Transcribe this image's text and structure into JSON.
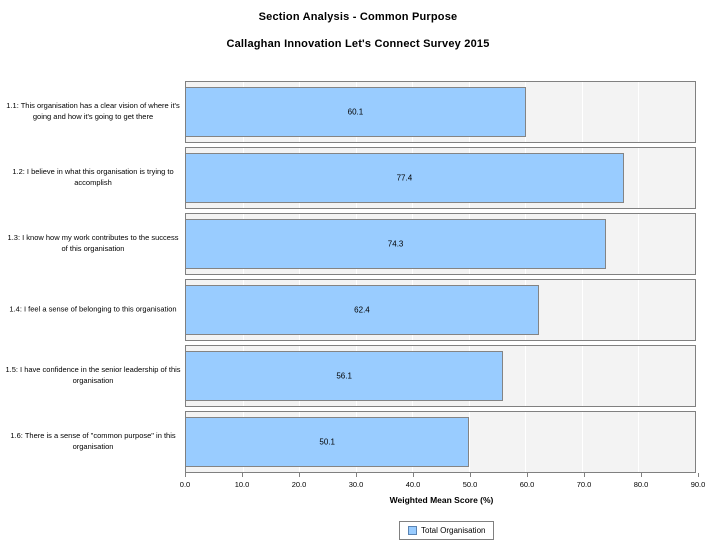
{
  "chart_data": {
    "type": "bar",
    "orientation": "horizontal",
    "title": "Section Analysis  - Common  Purpose",
    "subtitle": "Callaghan Innovation  Let's Connect Survey 2015",
    "categories": [
      "1.1:  This organisation  has a clear vision  of where it's going and how  it's going to get there",
      "1.2: I believe in what this organisation is trying to accomplish",
      "1.3: I know how my  work contributes to the success of this organisation",
      "1.4: I feel a sense of belonging to this organisation",
      "1.5: I have confidence in the senior leadership of this organisation",
      "1.6:  There is a sense of \"common purpose\" in this organisation"
    ],
    "series": [
      {
        "name": "Total Organisation",
        "values": [
          60.1,
          77.4,
          74.3,
          62.4,
          56.1,
          50.1
        ]
      }
    ],
    "xlabel": "Weighted Mean Score (%)",
    "xlim": [
      0,
      90
    ],
    "xtick_step": 10,
    "xticks": [
      "0.0",
      "10.0",
      "20.0",
      "30.0",
      "40.0",
      "50.0",
      "60.0",
      "70.0",
      "80.0",
      "90.0"
    ],
    "grid": true,
    "legend": {
      "label": "Total Organisation",
      "position": "bottom"
    },
    "colors": {
      "bar_fill": "#99CCFF",
      "bar_border": "#848484",
      "panel_background": "#F3F3F3",
      "panel_border": "#808080",
      "gridline": "#FFFFFF",
      "text": "#000000",
      "legend_border": "#808080"
    }
  }
}
